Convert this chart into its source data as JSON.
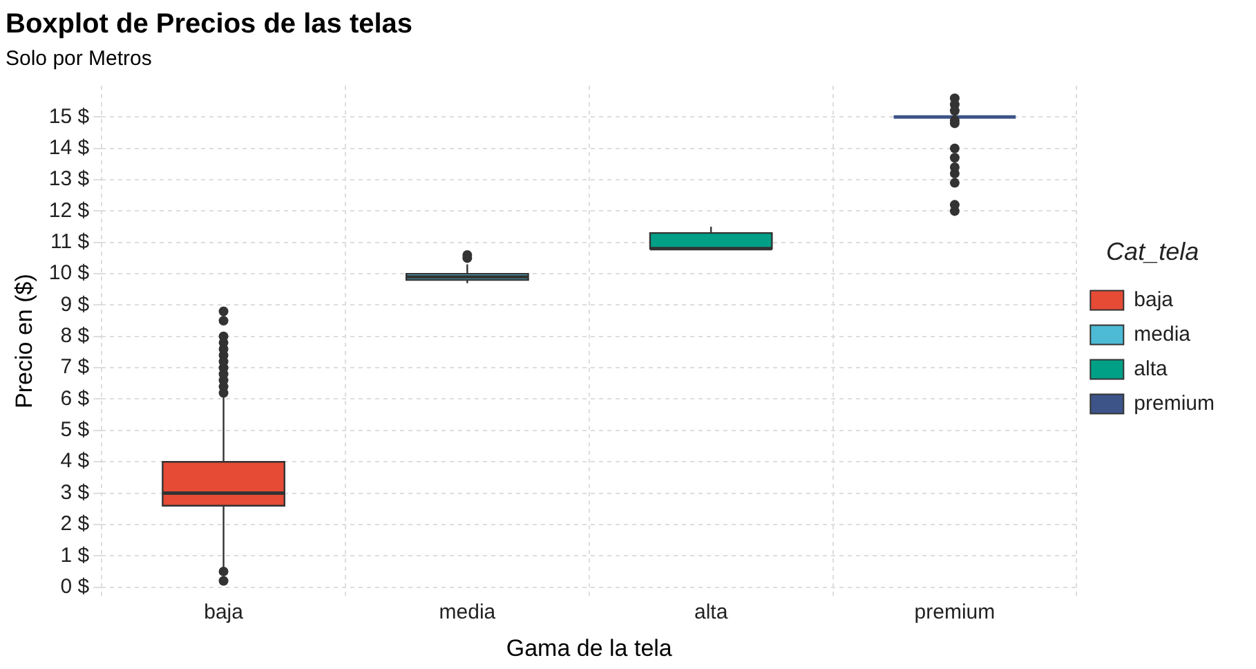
{
  "chart_data": {
    "type": "box",
    "title": "Boxplot de Precios de las telas",
    "subtitle": "Solo por Metros",
    "xlabel": "Gama de la tela",
    "ylabel": "Precio en ($)",
    "legend_title": "Cat_tela",
    "categories": [
      "baja",
      "media",
      "alta",
      "premium"
    ],
    "series": [
      {
        "name": "baja",
        "color": "#e64b35",
        "boxes": [
          {
            "low": 0.6,
            "q1": 2.6,
            "median": 3.0,
            "q3": 4.0,
            "high": 6.1,
            "outliers": [
              0.2,
              0.5,
              6.2,
              6.4,
              6.6,
              6.8,
              7.0,
              7.2,
              7.4,
              7.6,
              7.8,
              8.0,
              8.5,
              8.8
            ]
          },
          null,
          null,
          null
        ]
      },
      {
        "name": "media",
        "color": "#4dbbd5",
        "boxes": [
          null,
          {
            "low": 9.7,
            "q1": 9.8,
            "median": 9.9,
            "q3": 10.0,
            "high": 10.3,
            "outliers": [
              10.5,
              10.6
            ]
          },
          null,
          null
        ]
      },
      {
        "name": "alta",
        "color": "#00a087",
        "boxes": [
          null,
          null,
          {
            "low": 10.8,
            "q1": 10.8,
            "median": 10.8,
            "q3": 11.3,
            "high": 11.5
          },
          null
        ]
      },
      {
        "name": "premium",
        "color": "#3c5488",
        "boxes": [
          null,
          null,
          null,
          {
            "low": 15.0,
            "q1": 15.0,
            "median": 15.0,
            "q3": 15.0,
            "high": 15.0,
            "outliers": [
              12.0,
              12.2,
              12.9,
              13.2,
              13.4,
              13.7,
              14.0,
              14.8,
              14.9,
              15.2,
              15.4,
              15.6
            ]
          }
        ]
      }
    ],
    "ylim": [
      -0.3,
      16
    ],
    "yticks": [
      {
        "value": 0,
        "label": "0 $"
      },
      {
        "value": 1,
        "label": "1 $"
      },
      {
        "value": 2,
        "label": "2 $"
      },
      {
        "value": 3,
        "label": "3 $"
      },
      {
        "value": 4,
        "label": "4 $"
      },
      {
        "value": 5,
        "label": "5 $"
      },
      {
        "value": 6,
        "label": "6 $"
      },
      {
        "value": 7,
        "label": "7 $"
      },
      {
        "value": 8,
        "label": "8 $"
      },
      {
        "value": 9,
        "label": "9 $"
      },
      {
        "value": 10,
        "label": "10 $"
      },
      {
        "value": 11,
        "label": "11 $"
      },
      {
        "value": 12,
        "label": "12 $"
      },
      {
        "value": 13,
        "label": "13 $"
      },
      {
        "value": 14,
        "label": "14 $"
      },
      {
        "value": 15,
        "label": "15 $"
      }
    ],
    "grid": true,
    "legend": "right"
  }
}
